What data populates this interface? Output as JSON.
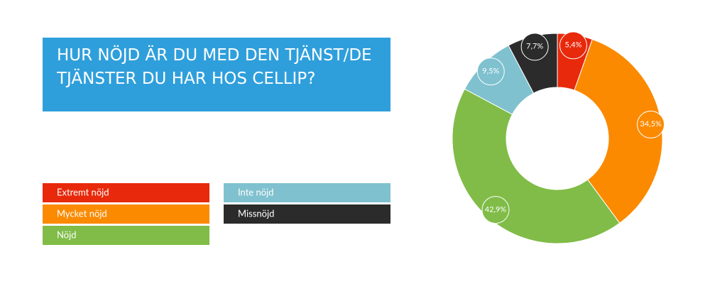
{
  "chart_data": {
    "type": "donut",
    "title": "HUR NÖJD ÄR DU MED DEN TJÄNST/DE TJÄNSTER DU HAR HOS CELLIP?",
    "categories": [
      "Extremt nöjd",
      "Mycket nöjd",
      "Nöjd",
      "Inte nöjd",
      "Missnöjd"
    ],
    "values": [
      5.4,
      34.5,
      42.9,
      9.5,
      7.7
    ],
    "value_labels": [
      "5,4%",
      "34,5%",
      "42,9%",
      "9,5%",
      "7,7%"
    ],
    "colors": [
      "#e8290b",
      "#fb8a00",
      "#80bc47",
      "#7fc1cf",
      "#2b2b2b"
    ]
  }
}
